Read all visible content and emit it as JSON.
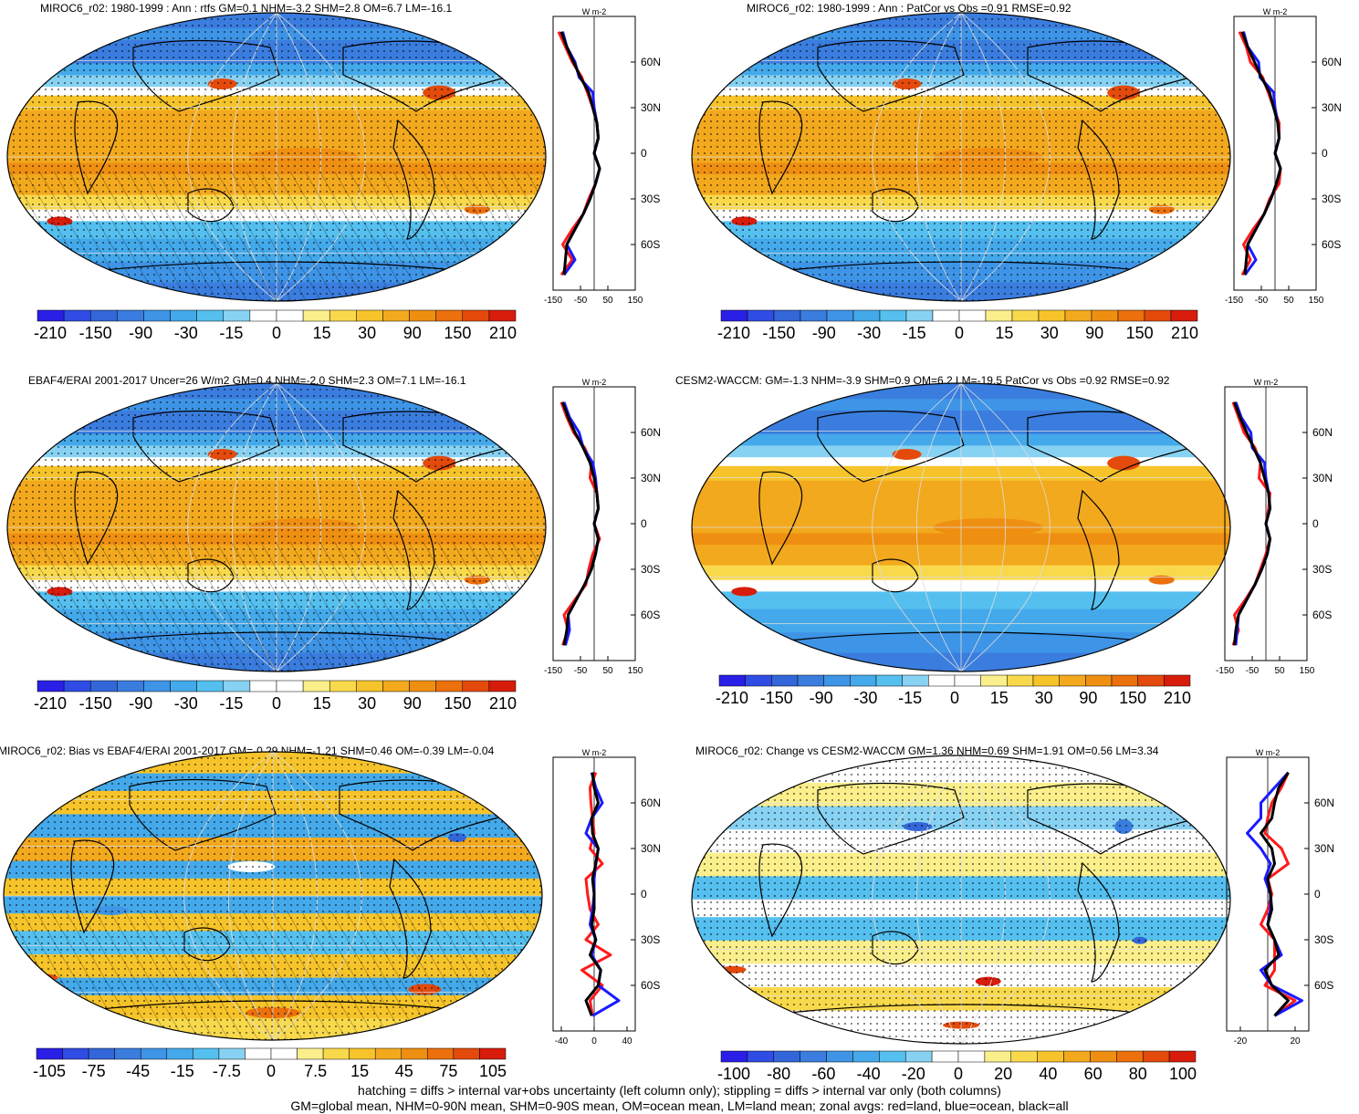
{
  "panels": [
    {
      "title": "MIROC6_r02: 1980-1999 : Ann : rtfs GM=0.1 NHM=-3.2 SHM=2.8 OM=6.7 LM=-16.1",
      "hatch": true,
      "stipple": true,
      "scheme": "base"
    },
    {
      "title": "MIROC6_r02: 1980-1999 : Ann : PatCor vs Obs =0.91 RMSE=0.92",
      "hatch": false,
      "stipple": true,
      "scheme": "base"
    },
    {
      "title": "EBAF4/ERAI 2001-2017 Uncer=26 W/m2 GM=0.4 NHM=-2.0 SHM=2.3 OM=7.1 LM=-16.1",
      "hatch": true,
      "stipple": true,
      "scheme": "base"
    },
    {
      "title": "CESM2-WACCM: GM=-1.3 NHM=-3.9 SHM=0.9 OM=6.2 LM=-19.5 PatCor vs Obs =0.92 RMSE=0.92",
      "hatch": false,
      "stipple": false,
      "scheme": "base"
    },
    {
      "title": "MIROC6_r02: Bias vs EBAF4/ERAI 2001-2017 GM=-0.29 NHM=-1.21 SHM=0.46 OM=-0.39 LM=-0.04",
      "hatch": true,
      "stipple": true,
      "scheme": "bias"
    },
    {
      "title": "MIROC6_r02: Change vs CESM2-WACCM GM=1.36 NHM=0.69 SHM=1.91 OM=0.56 LM=3.34",
      "hatch": false,
      "stipple": true,
      "scheme": "change"
    }
  ],
  "colorbars": {
    "top": [
      "-210",
      "-150",
      "-90",
      "-30",
      "-15",
      "0",
      "15",
      "30",
      "90",
      "150",
      "210"
    ],
    "bias": [
      "-105",
      "-75",
      "-45",
      "-15",
      "-7.5",
      "0",
      "7.5",
      "15",
      "45",
      "75",
      "105"
    ],
    "change": [
      "-100",
      "-80",
      "-60",
      "-40",
      "-20",
      "0",
      "20",
      "40",
      "60",
      "80",
      "100"
    ]
  },
  "colors": {
    "palette": [
      "#2a1fe6",
      "#2f4ce4",
      "#3366d8",
      "#3a7ddf",
      "#3e94e6",
      "#44a9ea",
      "#55c0ef",
      "#87d2f3",
      "#ffffff",
      "#ffffff",
      "#fbef8c",
      "#f9d94c",
      "#f6c42a",
      "#f3a91e",
      "#ef8f12",
      "#ec700c",
      "#e34a0c",
      "#d81c0c"
    ],
    "land": "#ffffff",
    "red_line": "#ff1a1a",
    "blue_line": "#1a1aff",
    "black_line": "#000000"
  },
  "zonal": {
    "unit": "W m-2",
    "lat_ticks": [
      "60N",
      "30N",
      "0",
      "30S",
      "60S"
    ],
    "x_ticks_top": [
      "-150",
      "-50",
      "50",
      "150"
    ],
    "x_ticks_bias": [
      "-40",
      "0",
      "40"
    ],
    "x_ticks_change": [
      "-20",
      "20"
    ]
  },
  "chart_data": {
    "type": "heatmap",
    "variable": "rtfs",
    "units": "W m-2",
    "zonal_lat": [
      80,
      70,
      60,
      50,
      40,
      30,
      20,
      10,
      0,
      -10,
      -20,
      -30,
      -40,
      -50,
      -60,
      -70,
      -80
    ],
    "zonal_means": [
      {
        "panel": 0,
        "x_range": [
          -150,
          150
        ],
        "all": [
          -120,
          -100,
          -75,
          -50,
          -20,
          -5,
          10,
          15,
          0,
          20,
          5,
          -15,
          -40,
          -70,
          -100,
          -105,
          -110
        ],
        "land": [
          -130,
          -105,
          -80,
          -45,
          -25,
          -5,
          10,
          15,
          0,
          20,
          5,
          -20,
          -40,
          -80,
          -115,
          -80,
          -120
        ],
        "ocean": [
          -115,
          -100,
          -70,
          -55,
          -5,
          0,
          10,
          15,
          0,
          20,
          5,
          -15,
          -40,
          -70,
          -100,
          -70,
          -110
        ]
      },
      {
        "panel": 1,
        "x_range": [
          -150,
          150
        ],
        "all": [
          -120,
          -100,
          -75,
          -50,
          -20,
          -5,
          10,
          15,
          0,
          20,
          5,
          -15,
          -40,
          -70,
          -100,
          -105,
          -110
        ],
        "land": [
          -130,
          -105,
          -90,
          -45,
          -25,
          -5,
          15,
          15,
          0,
          20,
          15,
          -20,
          -40,
          -80,
          -115,
          -90,
          -120
        ],
        "ocean": [
          -115,
          -100,
          -60,
          -55,
          -5,
          0,
          10,
          15,
          0,
          20,
          5,
          -15,
          -40,
          -70,
          -100,
          -70,
          -110
        ]
      },
      {
        "panel": 2,
        "x_range": [
          -150,
          150
        ],
        "all": [
          -115,
          -95,
          -70,
          -40,
          -15,
          0,
          10,
          15,
          0,
          15,
          5,
          -10,
          -35,
          -65,
          -95,
          -100,
          -110
        ],
        "land": [
          -120,
          -100,
          -75,
          -35,
          -10,
          -15,
          10,
          15,
          0,
          20,
          -5,
          -20,
          -30,
          -70,
          -110,
          -95,
          -115
        ],
        "ocean": [
          -110,
          -90,
          -55,
          -40,
          -5,
          5,
          10,
          15,
          0,
          15,
          5,
          -10,
          -35,
          -65,
          -95,
          -90,
          -105
        ]
      },
      {
        "panel": 3,
        "x_range": [
          -150,
          150
        ],
        "all": [
          -115,
          -95,
          -70,
          -45,
          -20,
          -5,
          10,
          15,
          0,
          15,
          5,
          -15,
          -40,
          -70,
          -100,
          -110,
          -115
        ],
        "land": [
          -120,
          -100,
          -80,
          -40,
          -20,
          -25,
          15,
          10,
          0,
          15,
          0,
          -20,
          -40,
          -75,
          -115,
          -100,
          -120
        ],
        "ocean": [
          -110,
          -90,
          -55,
          -50,
          -5,
          0,
          10,
          15,
          0,
          15,
          5,
          -15,
          -40,
          -70,
          -100,
          -105,
          -110
        ]
      },
      {
        "panel": 4,
        "x_range": [
          -50,
          50
        ],
        "all": [
          -2,
          0,
          5,
          -3,
          -2,
          5,
          2,
          -2,
          0,
          0,
          -3,
          2,
          -5,
          8,
          5,
          -10,
          -3
        ],
        "land": [
          2,
          -5,
          -4,
          -2,
          0,
          -5,
          10,
          -10,
          -8,
          -5,
          5,
          -10,
          20,
          -15,
          10,
          -5,
          -2
        ],
        "ocean": [
          -3,
          2,
          10,
          -3,
          -10,
          5,
          2,
          0,
          0,
          -2,
          -5,
          2,
          -3,
          8,
          5,
          30,
          -2
        ]
      },
      {
        "panel": 5,
        "x_range": [
          -30,
          30
        ],
        "all": [
          15,
          8,
          5,
          3,
          -5,
          3,
          5,
          0,
          2,
          3,
          0,
          5,
          8,
          -2,
          3,
          15,
          5
        ],
        "land": [
          15,
          10,
          3,
          0,
          -2,
          10,
          15,
          0,
          3,
          0,
          -5,
          5,
          5,
          5,
          -2,
          20,
          5
        ],
        "ocean": [
          15,
          5,
          -5,
          -5,
          -15,
          -5,
          2,
          -2,
          2,
          2,
          0,
          5,
          10,
          -5,
          3,
          25,
          5
        ]
      }
    ]
  },
  "footer": {
    "line1": "hatching = diffs > internal var+obs uncertainty (left column only); stippling = diffs > internal var only (both columns)",
    "line2": "GM=global mean, NHM=0-90N mean, SHM=0-90S mean, OM=ocean mean, LM=land mean; zonal avgs: red=land, blue=ocean, black=all"
  }
}
